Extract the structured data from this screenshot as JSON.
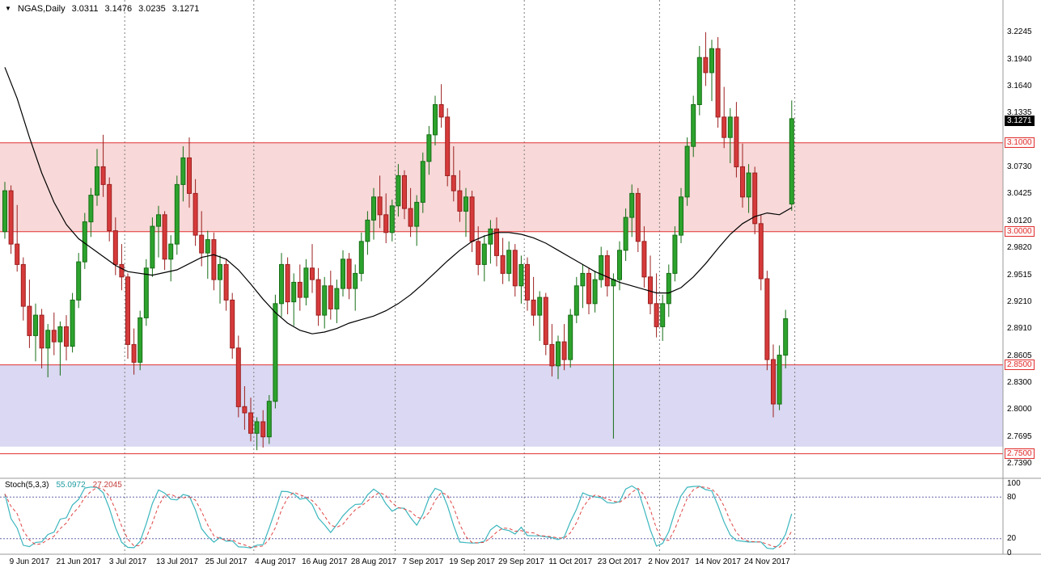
{
  "header": {
    "symbol": "NGAS,Daily",
    "open": "3.0311",
    "high": "3.1476",
    "low": "3.0235",
    "close": "3.1271"
  },
  "colors": {
    "bull": "#2da32d",
    "bull_border": "#156e15",
    "bear": "#d63a3a",
    "bear_border": "#9c1f1f",
    "ma": "#000000",
    "level": "#e03030",
    "stoch_k": "#3ab6bd",
    "stoch_d": "#e04545",
    "stoch_level": "#6666aa",
    "grid": "#808080",
    "pane_border": "#9a9a9a",
    "axis_text": "#000000",
    "current_bg": "#000000",
    "current_text": "#ffffff"
  },
  "chart_data": {
    "type": "candlestick",
    "title": "NGAS,Daily",
    "last_bar": {
      "open": 3.0311,
      "high": 3.1476,
      "low": 3.0235,
      "close": 3.1271
    },
    "price_axis": {
      "min": 2.726,
      "max": 3.248,
      "ticks": [
        "3.2245",
        "3.1940",
        "3.1640",
        "3.1335",
        "3.0730",
        "3.0425",
        "3.0120",
        "2.9820",
        "2.9515",
        "2.9210",
        "2.8910",
        "2.8605",
        "2.8300",
        "2.8000",
        "2.7695",
        "2.7390"
      ]
    },
    "current_price": {
      "price": 3.1271,
      "label": "3.1271"
    },
    "levels": [
      {
        "price": 3.1,
        "label": "3.1000"
      },
      {
        "price": 3.0,
        "label": "3.0000"
      },
      {
        "price": 2.85,
        "label": "2.8500"
      },
      {
        "price": 2.75,
        "label": "2.7500"
      }
    ],
    "zones": [
      {
        "from": 3.0,
        "to": 3.1,
        "fill": "#f8d8d8"
      },
      {
        "from": 2.758,
        "to": 2.85,
        "fill": "#dad8f2"
      }
    ],
    "x_axis": {
      "labels": [
        {
          "i": 4,
          "text": "9 Jun 2017"
        },
        {
          "i": 12,
          "text": "21 Jun 2017"
        },
        {
          "i": 20,
          "text": "3 Jul 2017"
        },
        {
          "i": 28,
          "text": "13 Jul 2017"
        },
        {
          "i": 36,
          "text": "25 Jul 2017"
        },
        {
          "i": 44,
          "text": "4 Aug 2017"
        },
        {
          "i": 52,
          "text": "16 Aug 2017"
        },
        {
          "i": 60,
          "text": "28 Aug 2017"
        },
        {
          "i": 68,
          "text": "7 Sep 2017"
        },
        {
          "i": 76,
          "text": "19 Sep 2017"
        },
        {
          "i": 84,
          "text": "29 Sep 2017"
        },
        {
          "i": 92,
          "text": "11 Oct 2017"
        },
        {
          "i": 100,
          "text": "23 Oct 2017"
        },
        {
          "i": 108,
          "text": "2 Nov 2017"
        },
        {
          "i": 116,
          "text": "14 Nov 2017"
        },
        {
          "i": 124,
          "text": "24 Nov 2017"
        }
      ]
    },
    "separators_i": [
      20,
      41,
      64,
      85,
      107,
      129
    ],
    "candles": [
      [
        3.0,
        3.056,
        2.992,
        3.046
      ],
      [
        3.046,
        3.052,
        2.975,
        2.986
      ],
      [
        2.986,
        3.03,
        2.955,
        2.963
      ],
      [
        2.963,
        2.971,
        2.9,
        2.916
      ],
      [
        2.916,
        2.946,
        2.869,
        2.883
      ],
      [
        2.883,
        2.919,
        2.854,
        2.906
      ],
      [
        2.906,
        2.913,
        2.846,
        2.869
      ],
      [
        2.869,
        2.896,
        2.836,
        2.889
      ],
      [
        2.889,
        2.909,
        2.861,
        2.876
      ],
      [
        2.876,
        2.899,
        2.838,
        2.893
      ],
      [
        2.893,
        2.906,
        2.855,
        2.871
      ],
      [
        2.871,
        2.931,
        2.864,
        2.923
      ],
      [
        2.923,
        2.976,
        2.914,
        2.966
      ],
      [
        2.966,
        3.021,
        2.958,
        3.011
      ],
      [
        3.011,
        3.049,
        2.994,
        3.041
      ],
      [
        3.041,
        3.093,
        3.029,
        3.073
      ],
      [
        3.073,
        3.109,
        3.039,
        3.053
      ],
      [
        3.053,
        3.061,
        2.989,
        3.001
      ],
      [
        3.001,
        3.016,
        2.951,
        2.963
      ],
      [
        2.963,
        2.986,
        2.934,
        2.949
      ],
      [
        2.949,
        2.953,
        2.857,
        2.873
      ],
      [
        2.873,
        2.891,
        2.839,
        2.853
      ],
      [
        2.853,
        2.911,
        2.844,
        2.903
      ],
      [
        2.903,
        2.969,
        2.894,
        2.959
      ],
      [
        2.959,
        3.016,
        2.949,
        3.006
      ],
      [
        3.006,
        3.029,
        2.971,
        3.019
      ],
      [
        3.019,
        3.023,
        2.957,
        2.969
      ],
      [
        2.969,
        2.996,
        2.944,
        2.986
      ],
      [
        2.986,
        3.063,
        2.974,
        3.053
      ],
      [
        3.053,
        3.096,
        3.034,
        3.083
      ],
      [
        3.083,
        3.106,
        3.027,
        3.043
      ],
      [
        3.043,
        3.059,
        2.984,
        2.996
      ],
      [
        2.996,
        3.023,
        2.961,
        2.976
      ],
      [
        2.976,
        3.001,
        2.947,
        2.991
      ],
      [
        2.991,
        2.999,
        2.934,
        2.946
      ],
      [
        2.946,
        2.973,
        2.919,
        2.963
      ],
      [
        2.963,
        2.969,
        2.911,
        2.923
      ],
      [
        2.923,
        2.931,
        2.857,
        2.869
      ],
      [
        2.869,
        2.883,
        2.791,
        2.803
      ],
      [
        2.803,
        2.826,
        2.777,
        2.796
      ],
      [
        2.796,
        2.813,
        2.764,
        2.773
      ],
      [
        2.773,
        2.791,
        2.754,
        2.786
      ],
      [
        2.786,
        2.799,
        2.757,
        2.769
      ],
      [
        2.769,
        2.816,
        2.761,
        2.809
      ],
      [
        2.809,
        2.929,
        2.801,
        2.919
      ],
      [
        2.919,
        2.976,
        2.904,
        2.963
      ],
      [
        2.963,
        2.971,
        2.907,
        2.921
      ],
      [
        2.921,
        2.953,
        2.894,
        2.943
      ],
      [
        2.943,
        2.963,
        2.911,
        2.926
      ],
      [
        2.926,
        2.969,
        2.917,
        2.959
      ],
      [
        2.959,
        2.986,
        2.931,
        2.946
      ],
      [
        2.946,
        2.959,
        2.894,
        2.906
      ],
      [
        2.906,
        2.949,
        2.891,
        2.939
      ],
      [
        2.939,
        2.956,
        2.901,
        2.913
      ],
      [
        2.913,
        2.946,
        2.897,
        2.936
      ],
      [
        2.936,
        2.979,
        2.927,
        2.969
      ],
      [
        2.969,
        2.976,
        2.924,
        2.936
      ],
      [
        2.936,
        2.963,
        2.911,
        2.953
      ],
      [
        2.953,
        2.999,
        2.944,
        2.989
      ],
      [
        2.989,
        3.023,
        2.974,
        3.013
      ],
      [
        3.013,
        3.049,
        2.991,
        3.039
      ],
      [
        3.039,
        3.063,
        3.004,
        3.019
      ],
      [
        3.019,
        3.043,
        2.987,
        2.999
      ],
      [
        2.999,
        3.036,
        2.989,
        3.029
      ],
      [
        3.029,
        3.076,
        3.017,
        3.063
      ],
      [
        3.063,
        3.069,
        3.014,
        3.026
      ],
      [
        3.026,
        3.049,
        2.994,
        3.006
      ],
      [
        3.006,
        3.041,
        2.984,
        3.033
      ],
      [
        3.033,
        3.089,
        3.021,
        3.079
      ],
      [
        3.079,
        3.119,
        3.064,
        3.109
      ],
      [
        3.109,
        3.153,
        3.097,
        3.143
      ],
      [
        3.143,
        3.166,
        3.117,
        3.129
      ],
      [
        3.129,
        3.139,
        3.051,
        3.063
      ],
      [
        3.063,
        3.096,
        3.034,
        3.046
      ],
      [
        3.046,
        3.069,
        3.011,
        3.023
      ],
      [
        3.023,
        3.049,
        2.994,
        3.039
      ],
      [
        3.039,
        3.046,
        2.977,
        2.989
      ],
      [
        2.989,
        3.006,
        2.951,
        2.963
      ],
      [
        2.963,
        2.996,
        2.944,
        2.986
      ],
      [
        2.986,
        3.013,
        2.964,
        3.003
      ],
      [
        3.003,
        3.016,
        2.961,
        2.973
      ],
      [
        2.973,
        2.993,
        2.941,
        2.953
      ],
      [
        2.953,
        2.989,
        2.944,
        2.979
      ],
      [
        2.979,
        2.986,
        2.927,
        2.939
      ],
      [
        2.939,
        2.973,
        2.919,
        2.963
      ],
      [
        2.963,
        2.971,
        2.911,
        2.923
      ],
      [
        2.923,
        2.949,
        2.894,
        2.906
      ],
      [
        2.906,
        2.933,
        2.877,
        2.926
      ],
      [
        2.926,
        2.931,
        2.861,
        2.873
      ],
      [
        2.873,
        2.896,
        2.837,
        2.849
      ],
      [
        2.849,
        2.883,
        2.834,
        2.876
      ],
      [
        2.876,
        2.896,
        2.844,
        2.856
      ],
      [
        2.856,
        2.913,
        2.847,
        2.906
      ],
      [
        2.906,
        2.949,
        2.897,
        2.939
      ],
      [
        2.939,
        2.963,
        2.914,
        2.953
      ],
      [
        2.953,
        2.959,
        2.907,
        2.919
      ],
      [
        2.919,
        2.956,
        2.909,
        2.946
      ],
      [
        2.946,
        2.983,
        2.937,
        2.973
      ],
      [
        2.973,
        2.979,
        2.927,
        2.939
      ],
      [
        2.939,
        2.953,
        2.767,
        2.946
      ],
      [
        2.946,
        2.989,
        2.934,
        2.979
      ],
      [
        2.979,
        3.026,
        2.967,
        3.016
      ],
      [
        3.016,
        3.053,
        2.994,
        3.043
      ],
      [
        3.043,
        3.049,
        2.977,
        2.989
      ],
      [
        2.989,
        3.006,
        2.937,
        2.949
      ],
      [
        2.949,
        2.973,
        2.907,
        2.919
      ],
      [
        2.919,
        2.953,
        2.881,
        2.893
      ],
      [
        2.893,
        2.929,
        2.877,
        2.919
      ],
      [
        2.919,
        2.963,
        2.904,
        2.953
      ],
      [
        2.953,
        3.006,
        2.944,
        2.996
      ],
      [
        2.996,
        3.049,
        2.987,
        3.039
      ],
      [
        3.039,
        3.106,
        3.029,
        3.096
      ],
      [
        3.096,
        3.153,
        3.084,
        3.143
      ],
      [
        3.143,
        3.209,
        3.131,
        3.196
      ],
      [
        3.196,
        3.2245,
        3.164,
        3.179
      ],
      [
        3.179,
        3.216,
        3.147,
        3.206
      ],
      [
        3.206,
        3.219,
        3.117,
        3.129
      ],
      [
        3.129,
        3.163,
        3.094,
        3.106
      ],
      [
        3.106,
        3.139,
        3.077,
        3.129
      ],
      [
        3.129,
        3.146,
        3.061,
        3.073
      ],
      [
        3.073,
        3.099,
        3.027,
        3.039
      ],
      [
        3.039,
        3.076,
        3.021,
        3.066
      ],
      [
        3.066,
        3.073,
        2.997,
        3.009
      ],
      [
        3.009,
        3.019,
        2.934,
        2.947
      ],
      [
        2.947,
        2.956,
        2.844,
        2.856
      ],
      [
        2.856,
        2.873,
        2.791,
        2.806
      ],
      [
        2.806,
        2.872,
        2.799,
        2.861
      ],
      [
        2.861,
        2.912,
        2.846,
        2.902
      ],
      [
        3.0311,
        3.1476,
        3.0235,
        3.1271
      ]
    ],
    "ma_points": [
      [
        0,
        3.185
      ],
      [
        2,
        3.15
      ],
      [
        4,
        3.106
      ],
      [
        6,
        3.066
      ],
      [
        8,
        3.033
      ],
      [
        10,
        3.008
      ],
      [
        12,
        2.992
      ],
      [
        14,
        2.982
      ],
      [
        16,
        2.972
      ],
      [
        18,
        2.962
      ],
      [
        20,
        2.955
      ],
      [
        24,
        2.951
      ],
      [
        28,
        2.957
      ],
      [
        32,
        2.971
      ],
      [
        34,
        2.974
      ],
      [
        36,
        2.969
      ],
      [
        38,
        2.957
      ],
      [
        40,
        2.941
      ],
      [
        42,
        2.924
      ],
      [
        44,
        2.909
      ],
      [
        46,
        2.897
      ],
      [
        48,
        2.889
      ],
      [
        50,
        2.885
      ],
      [
        52,
        2.887
      ],
      [
        54,
        2.891
      ],
      [
        56,
        2.897
      ],
      [
        58,
        2.901
      ],
      [
        60,
        2.905
      ],
      [
        62,
        2.911
      ],
      [
        64,
        2.919
      ],
      [
        66,
        2.929
      ],
      [
        68,
        2.941
      ],
      [
        70,
        2.954
      ],
      [
        72,
        2.967
      ],
      [
        74,
        2.979
      ],
      [
        76,
        2.989
      ],
      [
        78,
        2.995
      ],
      [
        80,
        2.999
      ],
      [
        82,
        2.999
      ],
      [
        84,
        2.997
      ],
      [
        86,
        2.993
      ],
      [
        88,
        2.987
      ],
      [
        90,
        2.979
      ],
      [
        92,
        2.971
      ],
      [
        94,
        2.963
      ],
      [
        96,
        2.955
      ],
      [
        98,
        2.949
      ],
      [
        100,
        2.943
      ],
      [
        102,
        2.939
      ],
      [
        104,
        2.935
      ],
      [
        106,
        2.931
      ],
      [
        108,
        2.931
      ],
      [
        110,
        2.937
      ],
      [
        112,
        2.949
      ],
      [
        114,
        2.964
      ],
      [
        116,
        2.981
      ],
      [
        118,
        2.997
      ],
      [
        120,
        3.009
      ],
      [
        122,
        3.017
      ],
      [
        124,
        3.021
      ],
      [
        126,
        3.019
      ],
      [
        128,
        3.027
      ]
    ],
    "stochastic": {
      "label": "Stoch(5,3,3)",
      "k_period": 5,
      "slowing": 3,
      "d_period": 3,
      "k_value": "55.0972",
      "d_value": "27.2045",
      "range": [
        0,
        100
      ],
      "levels": [
        20,
        80
      ],
      "axis_ticks": [
        "100",
        "80",
        "20",
        "0"
      ]
    }
  }
}
